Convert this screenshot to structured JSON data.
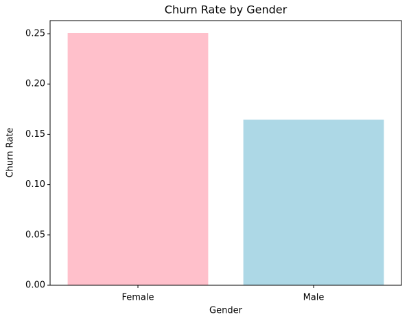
{
  "chart_data": {
    "type": "bar",
    "title": "Churn Rate by Gender",
    "x_label": "Gender",
    "y_label": "Churn Rate",
    "categories": [
      "Female",
      "Male"
    ],
    "values": [
      0.2507,
      0.1646
    ],
    "colors": [
      "#ffc0cb",
      "#add8e6"
    ],
    "ylim": [
      0,
      0.263
    ],
    "yticks": [
      {
        "value": 0,
        "label": "0.00"
      },
      {
        "value": 0.05,
        "label": "0.05"
      },
      {
        "value": 0.1,
        "label": "0.10"
      },
      {
        "value": 0.15,
        "label": "0.15"
      },
      {
        "value": 0.2,
        "label": "0.20"
      },
      {
        "value": 0.25,
        "label": "0.25"
      }
    ],
    "grid": false
  }
}
